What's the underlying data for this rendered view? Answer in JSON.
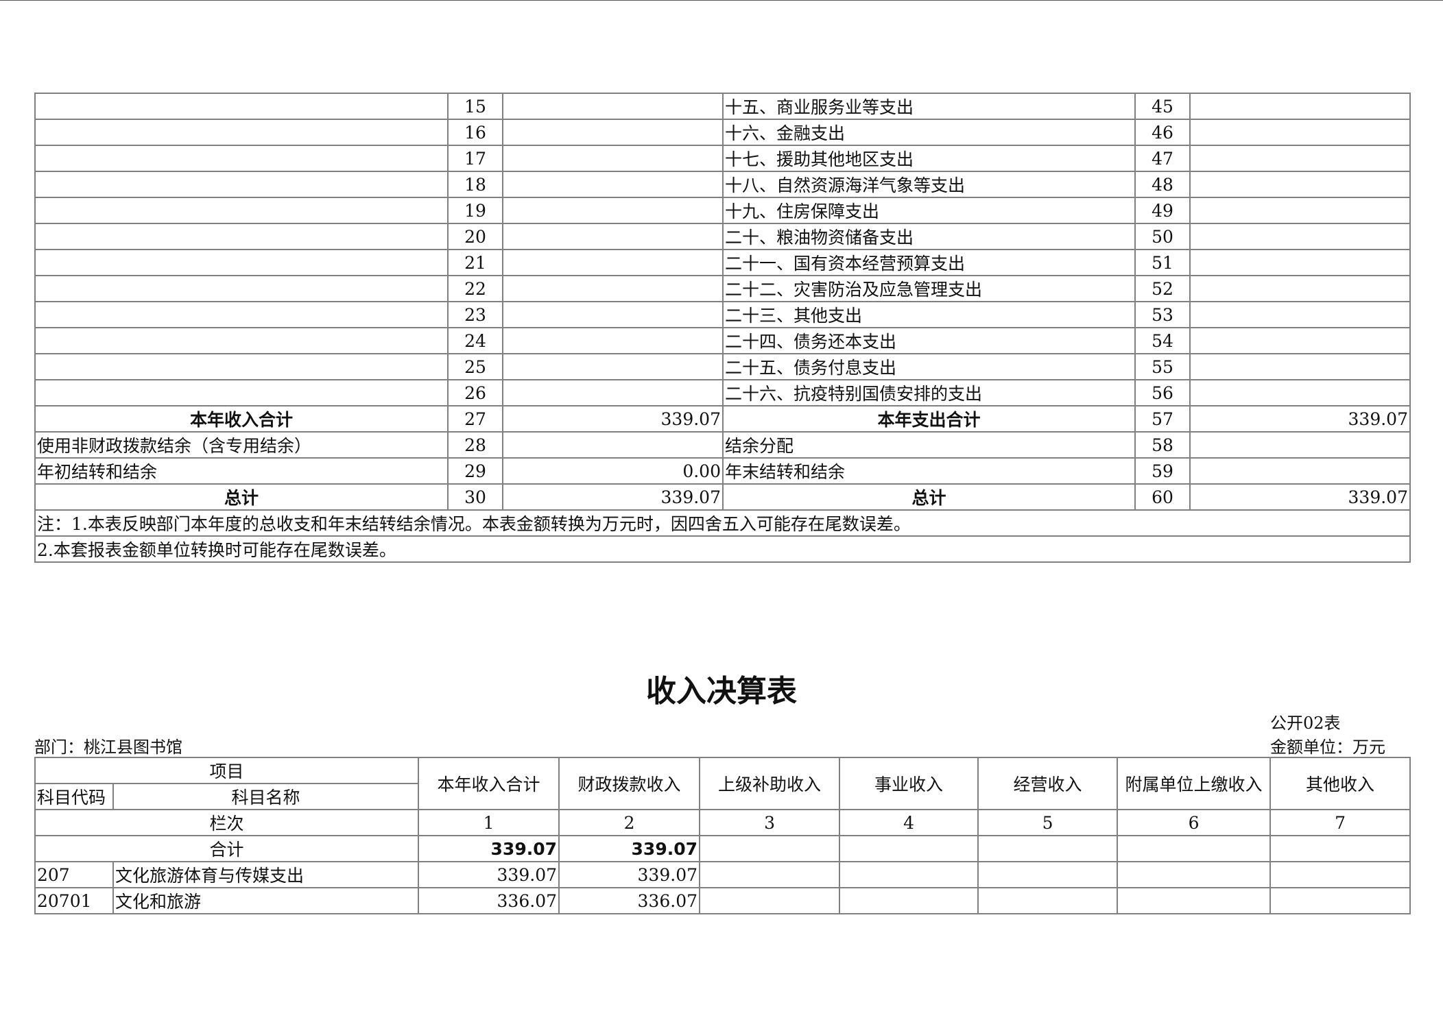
{
  "top_table": {
    "rows": [
      {
        "l_no": "15",
        "r_item": "十五、商业服务业等支出",
        "r_no": "45"
      },
      {
        "l_no": "16",
        "r_item": "十六、金融支出",
        "r_no": "46"
      },
      {
        "l_no": "17",
        "r_item": "十七、援助其他地区支出",
        "r_no": "47"
      },
      {
        "l_no": "18",
        "r_item": "十八、自然资源海洋气象等支出",
        "r_no": "48"
      },
      {
        "l_no": "19",
        "r_item": "十九、住房保障支出",
        "r_no": "49"
      },
      {
        "l_no": "20",
        "r_item": "二十、粮油物资储备支出",
        "r_no": "50"
      },
      {
        "l_no": "21",
        "r_item": "二十一、国有资本经营预算支出",
        "r_no": "51"
      },
      {
        "l_no": "22",
        "r_item": "二十二、灾害防治及应急管理支出",
        "r_no": "52"
      },
      {
        "l_no": "23",
        "r_item": "二十三、其他支出",
        "r_no": "53"
      },
      {
        "l_no": "24",
        "r_item": "二十四、债务还本支出",
        "r_no": "54"
      },
      {
        "l_no": "25",
        "r_item": "二十五、债务付息支出",
        "r_no": "55"
      },
      {
        "l_no": "26",
        "r_item": "二十六、抗疫特别国债安排的支出",
        "r_no": "56"
      }
    ],
    "income_total": {
      "label": "本年收入合计",
      "no": "27",
      "value": "339.07",
      "r_label": "本年支出合计",
      "r_no": "57",
      "r_value": "339.07"
    },
    "row28": {
      "label": "使用非财政拨款结余（含专用结余）",
      "no": "28",
      "r_label": "结余分配",
      "r_no": "58"
    },
    "row29": {
      "label": "年初结转和结余",
      "no": "29",
      "value": "0.00",
      "r_label": "年末结转和结余",
      "r_no": "59"
    },
    "grand": {
      "label": "总计",
      "no": "30",
      "value": "339.07",
      "r_label": "总计",
      "r_no": "60",
      "r_value": "339.07"
    },
    "note1": "注：1.本表反映部门本年度的总收支和年末结转结余情况。本表金额转换为万元时，因四舍五入可能存在尾数误差。",
    "note2": "2.本套报表金额单位转换时可能存在尾数误差。"
  },
  "income": {
    "title": "收入决算表",
    "form_no": "公开02表",
    "department": "部门：桃江县图书馆",
    "unit": "金额单位：万元",
    "headers": {
      "item": "项目",
      "code": "科目代码",
      "name": "科目名称",
      "cols": [
        "本年收入合计",
        "财政拨款收入",
        "上级补助收入",
        "事业收入",
        "经营收入",
        "附属单位上缴收入",
        "其他收入"
      ]
    },
    "col_index_label": "栏次",
    "col_index": [
      "1",
      "2",
      "3",
      "4",
      "5",
      "6",
      "7"
    ],
    "total": {
      "label": "合计",
      "values": [
        "339.07",
        "339.07",
        "",
        "",
        "",
        "",
        ""
      ]
    },
    "rows": [
      {
        "code": "207",
        "name": "文化旅游体育与传媒支出",
        "values": [
          "339.07",
          "339.07",
          "",
          "",
          "",
          "",
          ""
        ]
      },
      {
        "code": "20701",
        "name": "文化和旅游",
        "values": [
          "336.07",
          "336.07",
          "",
          "",
          "",
          "",
          ""
        ]
      }
    ]
  }
}
